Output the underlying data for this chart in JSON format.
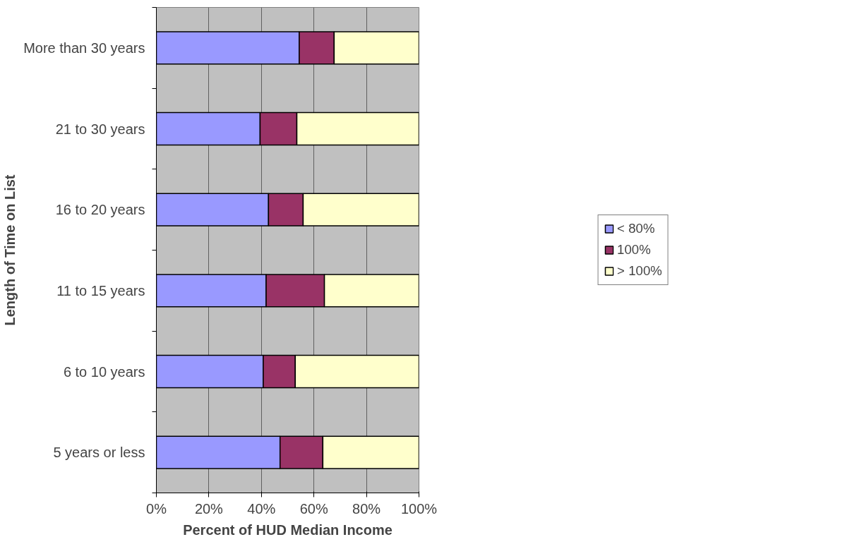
{
  "chart_data": {
    "type": "bar",
    "orientation": "horizontal",
    "stacked": true,
    "xlabel": "Percent of HUD Median Income",
    "ylabel": "Length of Time on List",
    "categories": [
      "More than 30 years",
      "21 to 30 years",
      "16 to 20 years",
      "11 to 15 years",
      "6 to 10 years",
      "5 years or less"
    ],
    "series": [
      {
        "name": "< 80%",
        "color": "#9999ff",
        "values": [
          54.4,
          39.5,
          42.7,
          41.8,
          40.7,
          47.1
        ]
      },
      {
        "name": "100%",
        "color": "#993366",
        "values": [
          13.3,
          14.0,
          13.2,
          22.2,
          12.2,
          16.3
        ]
      },
      {
        "name": "> 100%",
        "color": "#ffffcc",
        "values": [
          32.3,
          46.5,
          44.1,
          36.0,
          47.1,
          36.6
        ]
      }
    ],
    "xlim": [
      0,
      100
    ],
    "xticks": [
      {
        "value": 0,
        "label": "0%"
      },
      {
        "value": 20,
        "label": "20%"
      },
      {
        "value": 40,
        "label": "40%"
      },
      {
        "value": 60,
        "label": "60%"
      },
      {
        "value": 80,
        "label": "80%"
      },
      {
        "value": 100,
        "label": "100%"
      }
    ],
    "grid": "x",
    "legend": "right"
  }
}
